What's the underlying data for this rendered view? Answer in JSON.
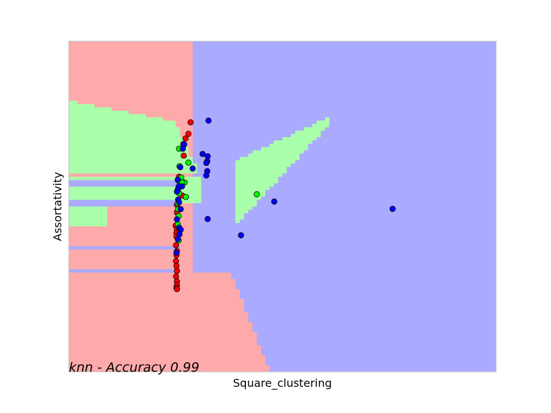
{
  "chart_data": {
    "type": "scatter",
    "title": "",
    "xlabel": "Square_clustering",
    "ylabel": "Assortativity",
    "xlim": [
      0,
      100
    ],
    "ylim": [
      0,
      100
    ],
    "xticks": [],
    "yticks": [],
    "grid": false,
    "annotation": "knn - Accuracy 0.99",
    "colors": {
      "region_red": "#FFAAAA",
      "region_green": "#AAFFAA",
      "region_blue": "#AAAAFF",
      "point_red": "#FF0000",
      "point_green": "#00FF00",
      "point_blue": "#0000FF",
      "frame": "#BBBBBB"
    },
    "decision_regions": {
      "columns": 100,
      "rows": 100,
      "class_colors": [
        "region_red",
        "region_green",
        "region_blue"
      ]
    },
    "series": [
      {
        "color": "point_red",
        "points": [
          [
            28.5,
            75.5
          ],
          [
            28.0,
            72.0
          ],
          [
            27.3,
            70.6
          ],
          [
            26.8,
            68.9
          ],
          [
            26.9,
            65.4
          ],
          [
            25.8,
            59.0
          ],
          [
            26.6,
            53.3
          ],
          [
            25.3,
            50.5
          ],
          [
            25.3,
            48.2
          ],
          [
            25.0,
            44.2
          ],
          [
            25.3,
            43.1
          ],
          [
            25.2,
            42.0
          ],
          [
            25.2,
            40.9
          ],
          [
            25.1,
            38.3
          ],
          [
            25.3,
            36.5
          ],
          [
            25.2,
            35.3
          ],
          [
            25.1,
            33.5
          ],
          [
            25.2,
            32.0
          ],
          [
            25.3,
            30.5
          ],
          [
            25.1,
            28.8
          ],
          [
            25.3,
            27.3
          ],
          [
            25.3,
            26.2
          ],
          [
            25.2,
            25.4
          ],
          [
            25.3,
            25.0
          ]
        ]
      },
      {
        "color": "point_green",
        "points": [
          [
            25.8,
            67.5
          ],
          [
            28.0,
            63.3
          ],
          [
            25.9,
            62.2
          ],
          [
            26.3,
            58.8
          ],
          [
            25.7,
            57.8
          ],
          [
            27.1,
            57.3
          ],
          [
            26.5,
            57.3
          ],
          [
            25.8,
            54.0
          ],
          [
            27.4,
            52.9
          ],
          [
            25.5,
            51.0
          ],
          [
            25.6,
            49.2
          ],
          [
            25.7,
            47.1
          ],
          [
            25.5,
            44.6
          ],
          [
            25.7,
            39.7
          ],
          [
            44.0,
            53.7
          ]
        ]
      },
      {
        "color": "point_blue",
        "points": [
          [
            32.7,
            76.0
          ],
          [
            27.0,
            68.8
          ],
          [
            26.7,
            67.5
          ],
          [
            31.3,
            65.9
          ],
          [
            32.5,
            65.2
          ],
          [
            32.4,
            63.7
          ],
          [
            32.2,
            63.2
          ],
          [
            26.1,
            61.9
          ],
          [
            29.0,
            61.5
          ],
          [
            32.4,
            60.7
          ],
          [
            32.2,
            59.4
          ],
          [
            25.5,
            58.1
          ],
          [
            25.7,
            56.0
          ],
          [
            26.5,
            56.1
          ],
          [
            25.5,
            55.1
          ],
          [
            25.3,
            54.5
          ],
          [
            25.6,
            52.1
          ],
          [
            25.8,
            51.3
          ],
          [
            26.2,
            49.2
          ],
          [
            25.3,
            46.1
          ],
          [
            25.8,
            43.6
          ],
          [
            26.2,
            43.0
          ],
          [
            25.9,
            41.6
          ],
          [
            25.5,
            40.1
          ],
          [
            25.2,
            36.0
          ],
          [
            32.5,
            46.2
          ],
          [
            40.3,
            41.3
          ],
          [
            48.1,
            51.5
          ],
          [
            75.8,
            49.3
          ]
        ]
      }
    ]
  }
}
